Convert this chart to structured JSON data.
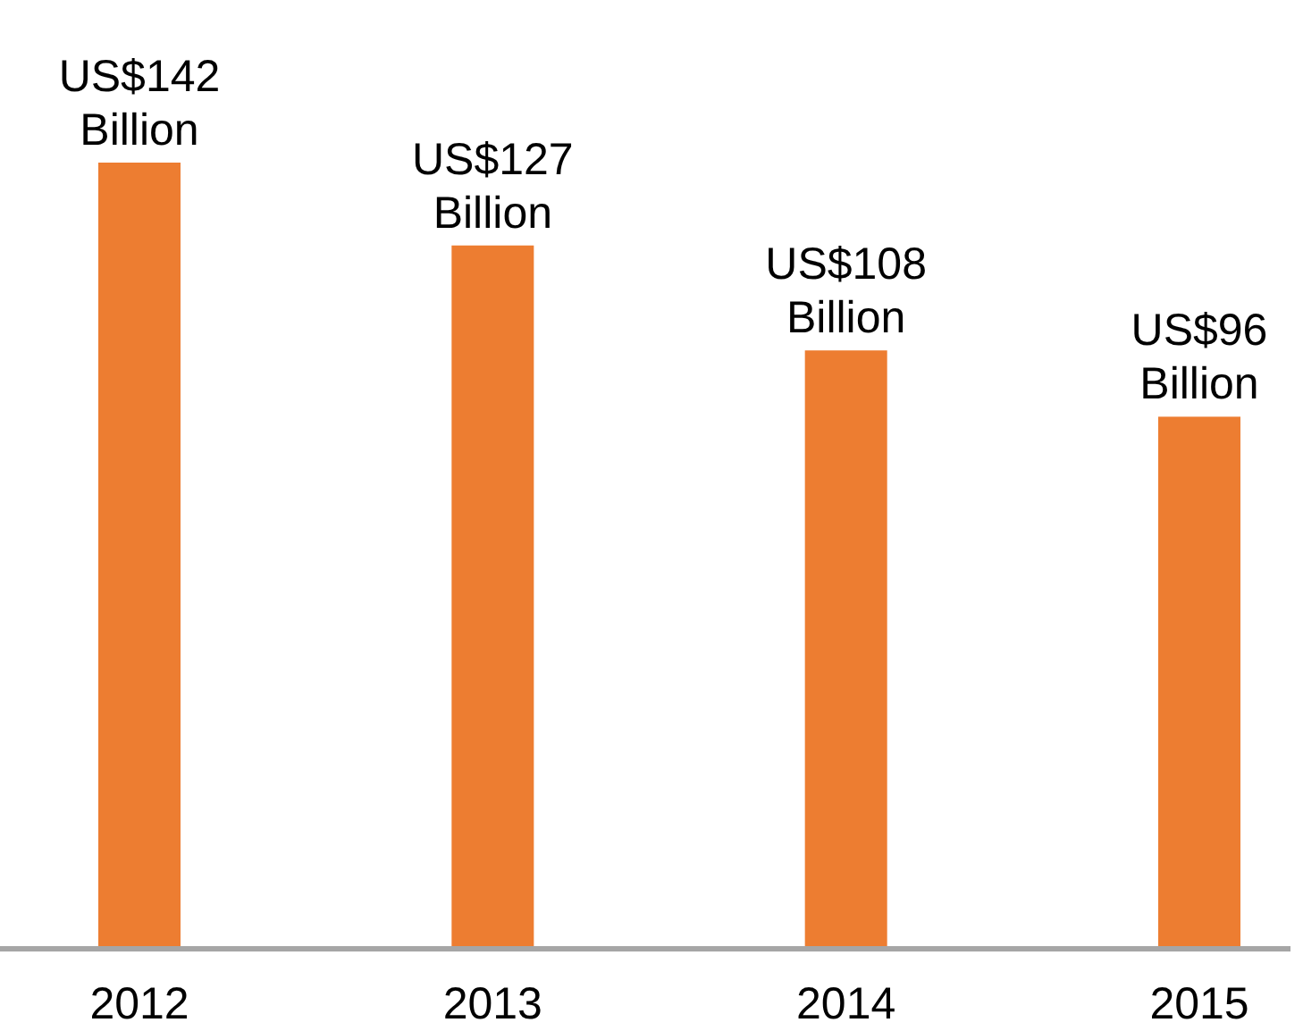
{
  "chart_data": {
    "type": "bar",
    "categories": [
      "2012",
      "2013",
      "2014",
      "2015"
    ],
    "values": [
      142,
      127,
      108,
      96
    ],
    "color": "#ed7d31",
    "value_labels": [
      "US$142 Billion",
      "US$127 Billion",
      "US$108 Billion",
      "US$96 Billion"
    ]
  }
}
